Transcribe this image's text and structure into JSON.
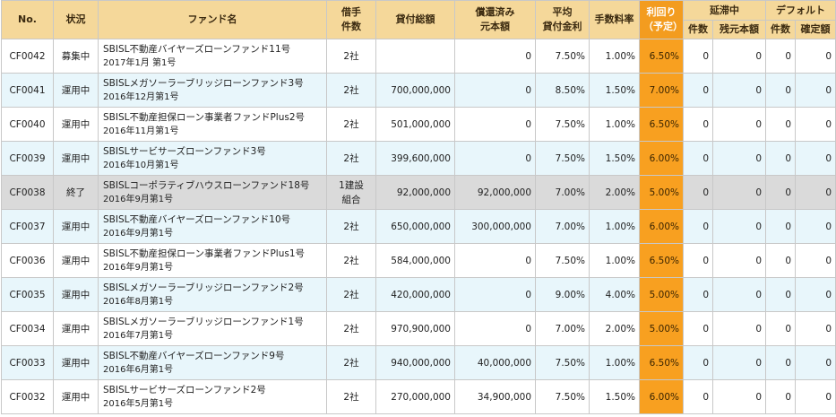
{
  "headers": {
    "no": "No.",
    "status": "状況",
    "fund_name": "ファンド名",
    "borrowers_l1": "借手",
    "borrowers_l2": "件数",
    "total_loan": "貸付総額",
    "repaid_l1": "償還済み",
    "repaid_l2": "元本額",
    "avg_rate_l1": "平均",
    "avg_rate_l2": "貸付金利",
    "fee_rate": "手数料率",
    "yield_l1": "利回り",
    "yield_l2": "（予定）",
    "delinquent": "延滞中",
    "default": "デフォルト",
    "count": "件数",
    "remaining_principal": "残元本額",
    "default_count": "件数",
    "confirmed_amount": "確定額"
  },
  "colors": {
    "header_bg": "#f5d89a",
    "yield_bg": "#f8a020",
    "row_blue": "#e8f6fb",
    "row_gray": "#dadada"
  },
  "rows": [
    {
      "no": "CF0042",
      "status": "募集中",
      "name": "SBISL不動産バイヤーズローンファンド11号",
      "date": "2017年1月 第1号",
      "borrowers_l1": "2社",
      "borrowers_l2": "",
      "total": "",
      "repaid": "0",
      "rate": "7.50%",
      "fee": "1.00%",
      "yield": "6.50%",
      "d_count": "0",
      "d_amount": "0",
      "f_count": "0",
      "f_amount": "0",
      "style": "white"
    },
    {
      "no": "CF0041",
      "status": "運用中",
      "name": "SBISLメガソーラーブリッジローンファンド3号",
      "date": "2016年12月第1号",
      "borrowers_l1": "2社",
      "borrowers_l2": "",
      "total": "700,000,000",
      "repaid": "0",
      "rate": "8.50%",
      "fee": "1.50%",
      "yield": "7.00%",
      "d_count": "0",
      "d_amount": "0",
      "f_count": "0",
      "f_amount": "0",
      "style": "blue"
    },
    {
      "no": "CF0040",
      "status": "運用中",
      "name": "SBISL不動産担保ローン事業者ファンドPlus2号",
      "date": "2016年11月第1号",
      "borrowers_l1": "2社",
      "borrowers_l2": "",
      "total": "501,000,000",
      "repaid": "0",
      "rate": "7.50%",
      "fee": "1.00%",
      "yield": "6.50%",
      "d_count": "0",
      "d_amount": "0",
      "f_count": "0",
      "f_amount": "0",
      "style": "white"
    },
    {
      "no": "CF0039",
      "status": "運用中",
      "name": "SBISLサービサーズローンファンド3号",
      "date": "2016年10月第1号",
      "borrowers_l1": "2社",
      "borrowers_l2": "",
      "total": "399,600,000",
      "repaid": "0",
      "rate": "7.50%",
      "fee": "1.50%",
      "yield": "6.00%",
      "d_count": "0",
      "d_amount": "0",
      "f_count": "0",
      "f_amount": "0",
      "style": "blue"
    },
    {
      "no": "CF0038",
      "status": "終了",
      "name": "SBISLコーポラティブハウスローンファンド18号",
      "date": "2016年9月第1号",
      "borrowers_l1": "1建設",
      "borrowers_l2": "組合",
      "total": "92,000,000",
      "repaid": "92,000,000",
      "rate": "7.00%",
      "fee": "2.00%",
      "yield": "5.00%",
      "d_count": "0",
      "d_amount": "0",
      "f_count": "0",
      "f_amount": "0",
      "style": "gray"
    },
    {
      "no": "CF0037",
      "status": "運用中",
      "name": "SBISL不動産バイヤーズローンファンド10号",
      "date": "2016年9月第1号",
      "borrowers_l1": "2社",
      "borrowers_l2": "",
      "total": "650,000,000",
      "repaid": "300,000,000",
      "rate": "7.00%",
      "fee": "1.00%",
      "yield": "6.00%",
      "d_count": "0",
      "d_amount": "0",
      "f_count": "0",
      "f_amount": "0",
      "style": "blue"
    },
    {
      "no": "CF0036",
      "status": "運用中",
      "name": "SBISL不動産担保ローン事業者ファンドPlus1号",
      "date": "2016年9月第1号",
      "borrowers_l1": "2社",
      "borrowers_l2": "",
      "total": "584,000,000",
      "repaid": "0",
      "rate": "7.50%",
      "fee": "1.00%",
      "yield": "6.50%",
      "d_count": "0",
      "d_amount": "0",
      "f_count": "0",
      "f_amount": "0",
      "style": "white"
    },
    {
      "no": "CF0035",
      "status": "運用中",
      "name": "SBISLメガソーラーブリッジローンファンド2号",
      "date": "2016年8月第1号",
      "borrowers_l1": "2社",
      "borrowers_l2": "",
      "total": "420,000,000",
      "repaid": "0",
      "rate": "9.00%",
      "fee": "4.00%",
      "yield": "5.00%",
      "d_count": "0",
      "d_amount": "0",
      "f_count": "0",
      "f_amount": "0",
      "style": "blue"
    },
    {
      "no": "CF0034",
      "status": "運用中",
      "name": "SBISLメガソーラーブリッジローンファンド1号",
      "date": "2016年7月第1号",
      "borrowers_l1": "2社",
      "borrowers_l2": "",
      "total": "970,900,000",
      "repaid": "0",
      "rate": "7.00%",
      "fee": "2.00%",
      "yield": "5.00%",
      "d_count": "0",
      "d_amount": "0",
      "f_count": "0",
      "f_amount": "0",
      "style": "white"
    },
    {
      "no": "CF0033",
      "status": "運用中",
      "name": "SBISL不動産バイヤーズローンファンド9号",
      "date": "2016年6月第1号",
      "borrowers_l1": "2社",
      "borrowers_l2": "",
      "total": "940,000,000",
      "repaid": "40,000,000",
      "rate": "7.50%",
      "fee": "1.00%",
      "yield": "6.50%",
      "d_count": "0",
      "d_amount": "0",
      "f_count": "0",
      "f_amount": "0",
      "style": "blue"
    },
    {
      "no": "CF0032",
      "status": "運用中",
      "name": "SBISLサービサーズローンファンド2号",
      "date": "2016年5月第1号",
      "borrowers_l1": "2社",
      "borrowers_l2": "",
      "total": "270,000,000",
      "repaid": "34,900,000",
      "rate": "7.50%",
      "fee": "1.50%",
      "yield": "6.00%",
      "d_count": "0",
      "d_amount": "0",
      "f_count": "0",
      "f_amount": "0",
      "style": "white"
    }
  ]
}
